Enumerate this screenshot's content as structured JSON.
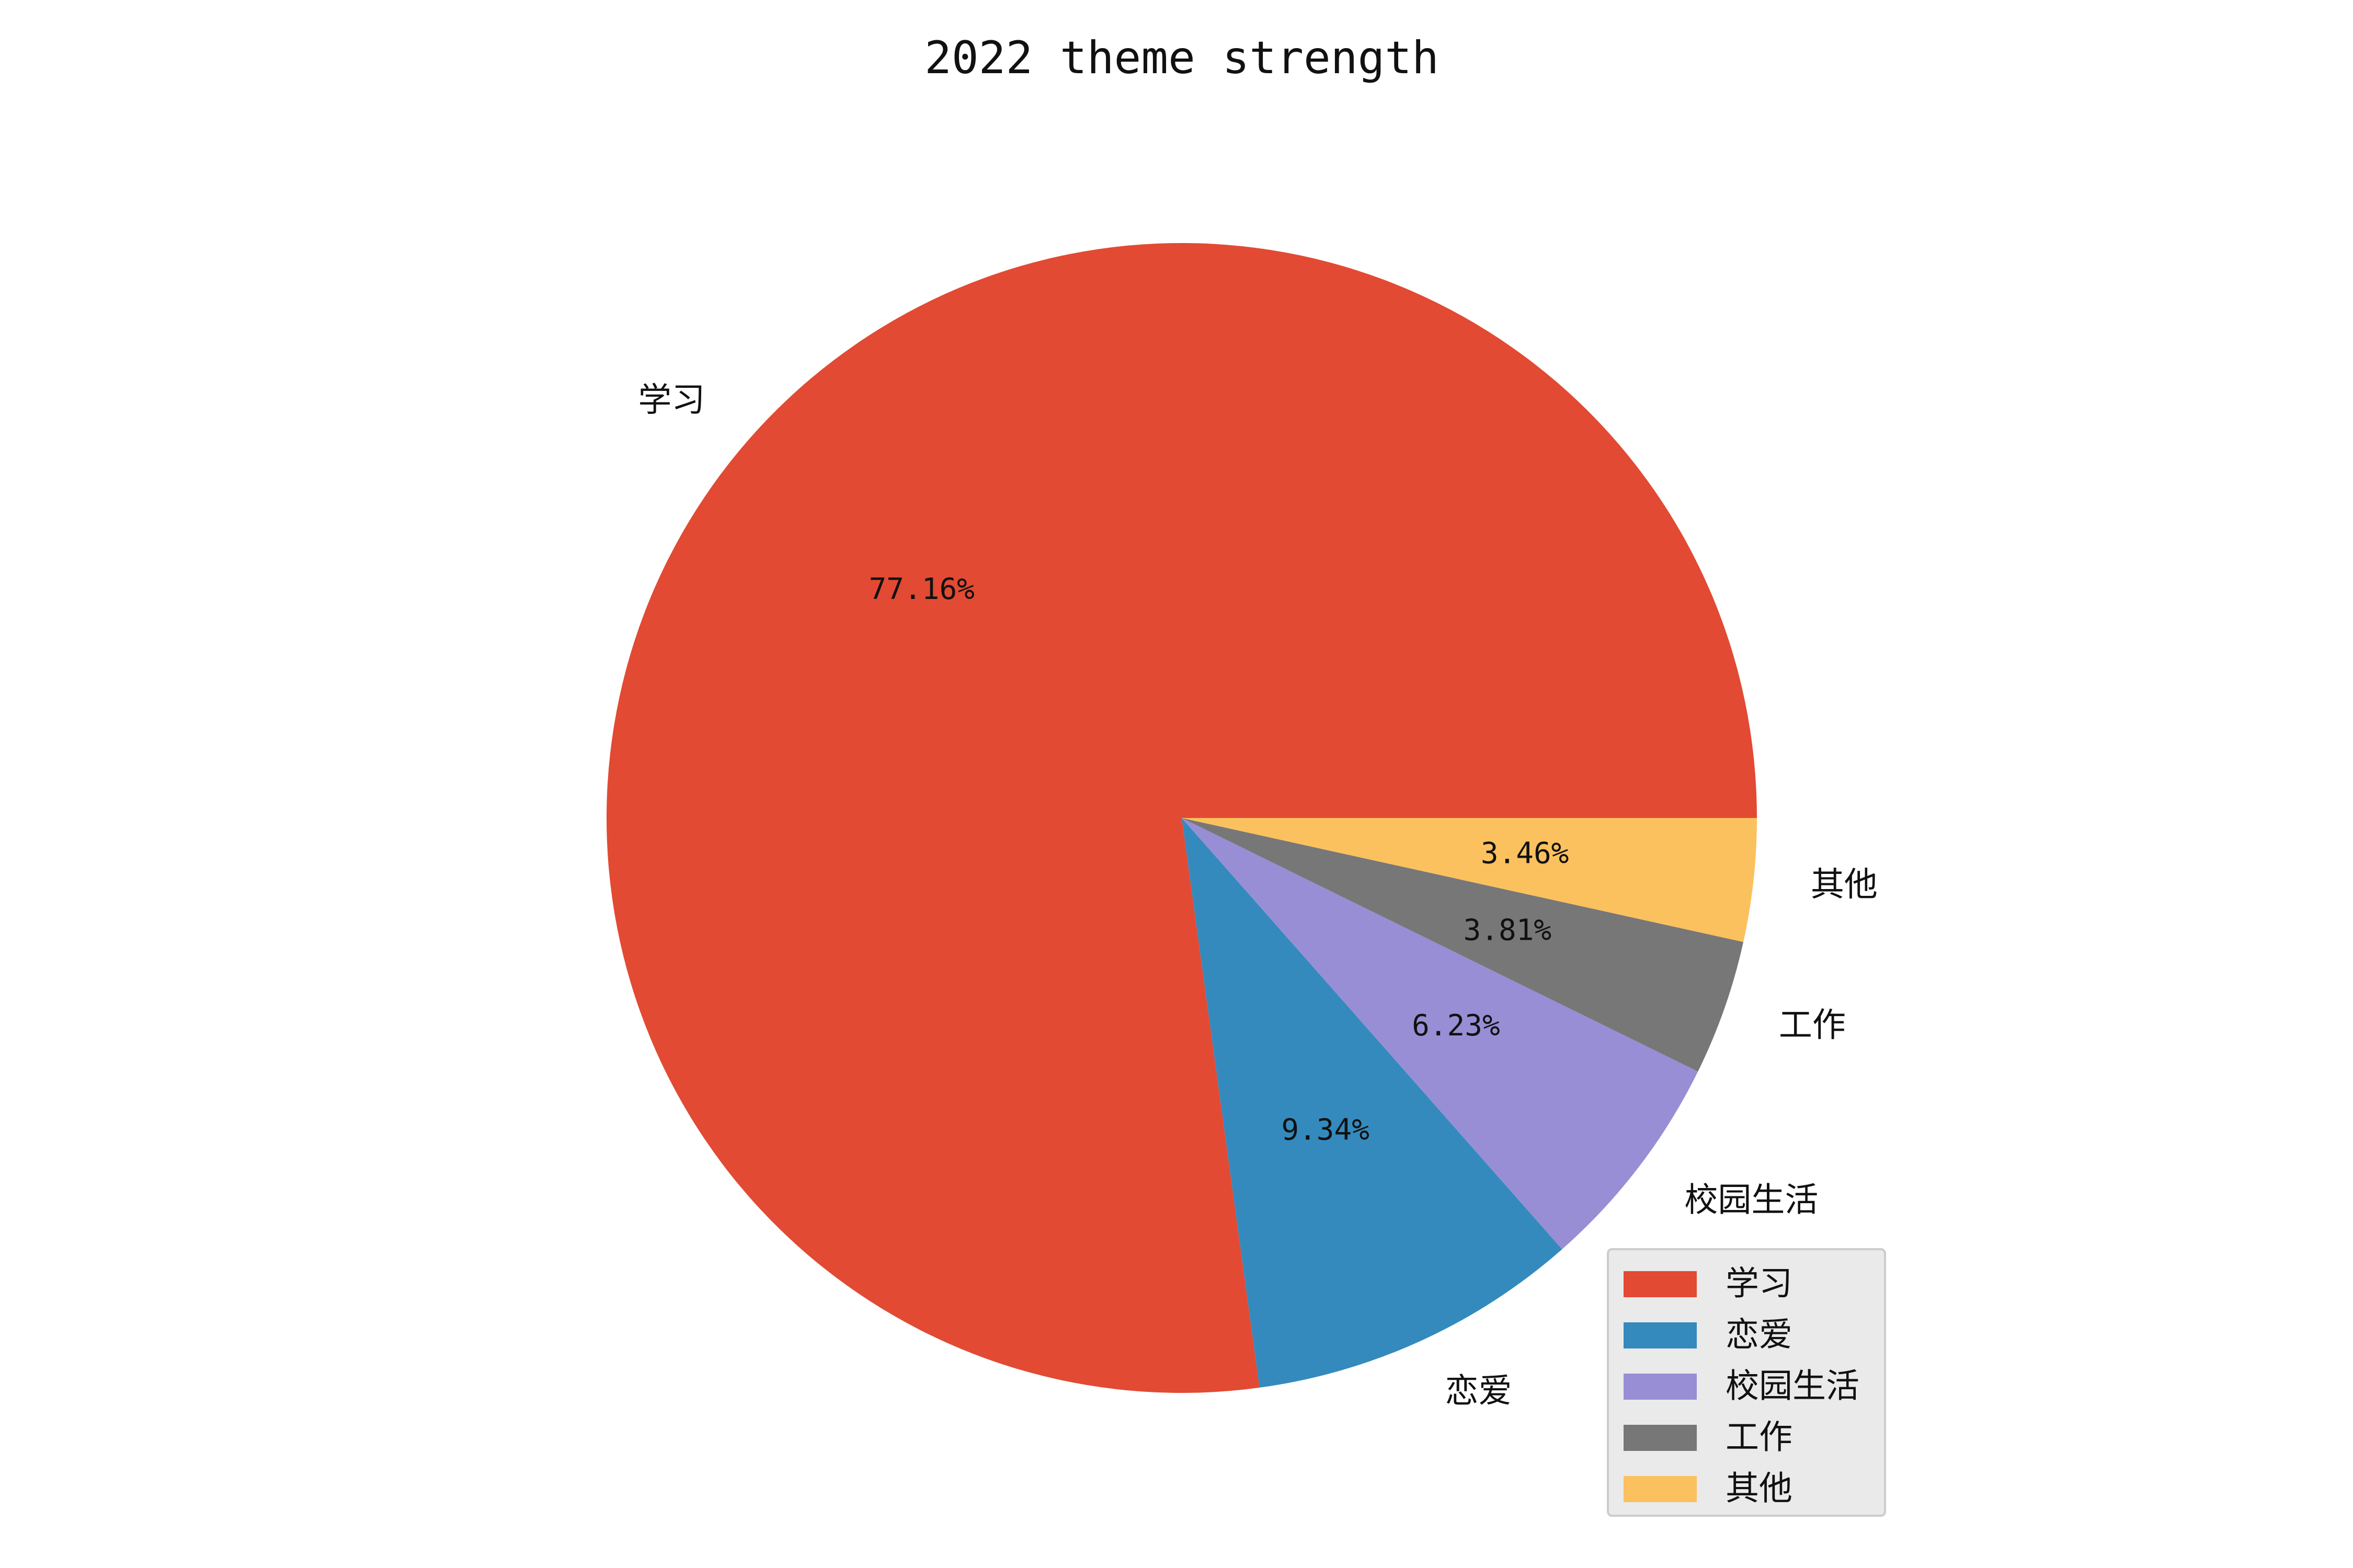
{
  "chart_data": {
    "type": "pie",
    "title": "2022 theme strength",
    "categories": [
      "学习",
      "恋爱",
      "校园生活",
      "工作",
      "其他"
    ],
    "values": [
      77.16,
      9.34,
      6.23,
      3.81,
      3.46
    ],
    "value_labels": [
      "77.16%",
      "9.34%",
      "6.23%",
      "3.81%",
      "3.46%"
    ],
    "colors": [
      "#E24A33",
      "#348ABD",
      "#988ED5",
      "#777777",
      "#FBC15E"
    ],
    "start_angle_deg": 0,
    "direction": "counterclockwise",
    "legend": {
      "position": "lower-right",
      "entries": [
        "学习",
        "恋爱",
        "校园生活",
        "工作",
        "其他"
      ]
    }
  }
}
